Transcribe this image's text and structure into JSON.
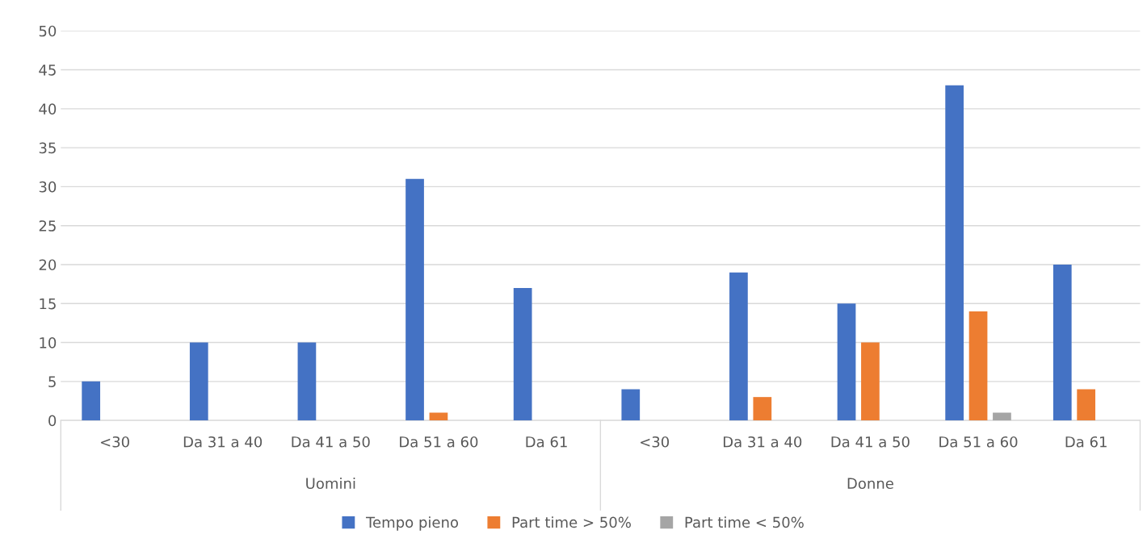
{
  "chart_data": {
    "type": "bar",
    "categories": [
      "<30",
      "Da 31 a 40",
      "Da 41 a 50",
      "Da 51 a 60",
      "Da 61",
      "<30",
      "Da 31 a 40",
      "Da 41 a 50",
      "Da 51 a 60",
      "Da 61"
    ],
    "series": [
      {
        "name": "Tempo pieno",
        "color": "#4472c4",
        "values": [
          5,
          10,
          10,
          31,
          17,
          4,
          19,
          15,
          43,
          20
        ]
      },
      {
        "name": "Part time > 50%",
        "color": "#ed7d31",
        "values": [
          0,
          0,
          0,
          1,
          0,
          0,
          3,
          10,
          14,
          4
        ]
      },
      {
        "name": "Part time < 50%",
        "color": "#a5a5a5",
        "values": [
          0,
          0,
          0,
          0,
          0,
          0,
          0,
          0,
          1,
          0
        ]
      }
    ],
    "annotations": [
      "Uomini",
      "Donne"
    ],
    "ylim": [
      0,
      50
    ],
    "yticks": [
      0,
      5,
      10,
      15,
      20,
      25,
      30,
      35,
      40,
      45,
      50
    ],
    "grid": "y",
    "legend": "bottom"
  }
}
